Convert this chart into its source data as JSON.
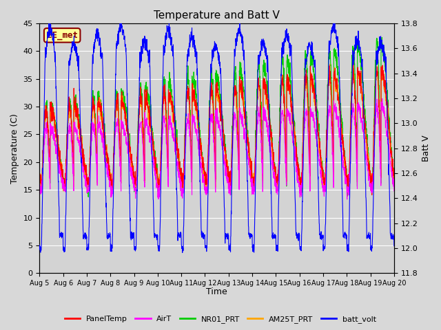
{
  "title": "Temperature and Batt V",
  "xlabel": "Time",
  "ylabel_left": "Temperature (C)",
  "ylabel_right": "Batt V",
  "annotation": "EE_met",
  "ylim_left": [
    0,
    45
  ],
  "ylim_right": [
    11.8,
    13.8
  ],
  "x_ticks": [
    "Aug 5",
    "Aug 6",
    "Aug 7",
    "Aug 8",
    "Aug 9",
    "Aug 10",
    "Aug 11",
    "Aug 12",
    "Aug 13",
    "Aug 14",
    "Aug 15",
    "Aug 16",
    "Aug 17",
    "Aug 18",
    "Aug 19",
    "Aug 20"
  ],
  "legend_labels": [
    "PanelTemp",
    "AirT",
    "NR01_PRT",
    "AM25T_PRT",
    "batt_volt"
  ],
  "legend_colors": [
    "#ff0000",
    "#ff00ff",
    "#00cc00",
    "#ffa500",
    "#0000ff"
  ],
  "bg_color": "#d8d8d8",
  "plot_bg_color": "#d3d3d3",
  "grid_color": "#ffffff",
  "n_days": 15,
  "seed": 42
}
